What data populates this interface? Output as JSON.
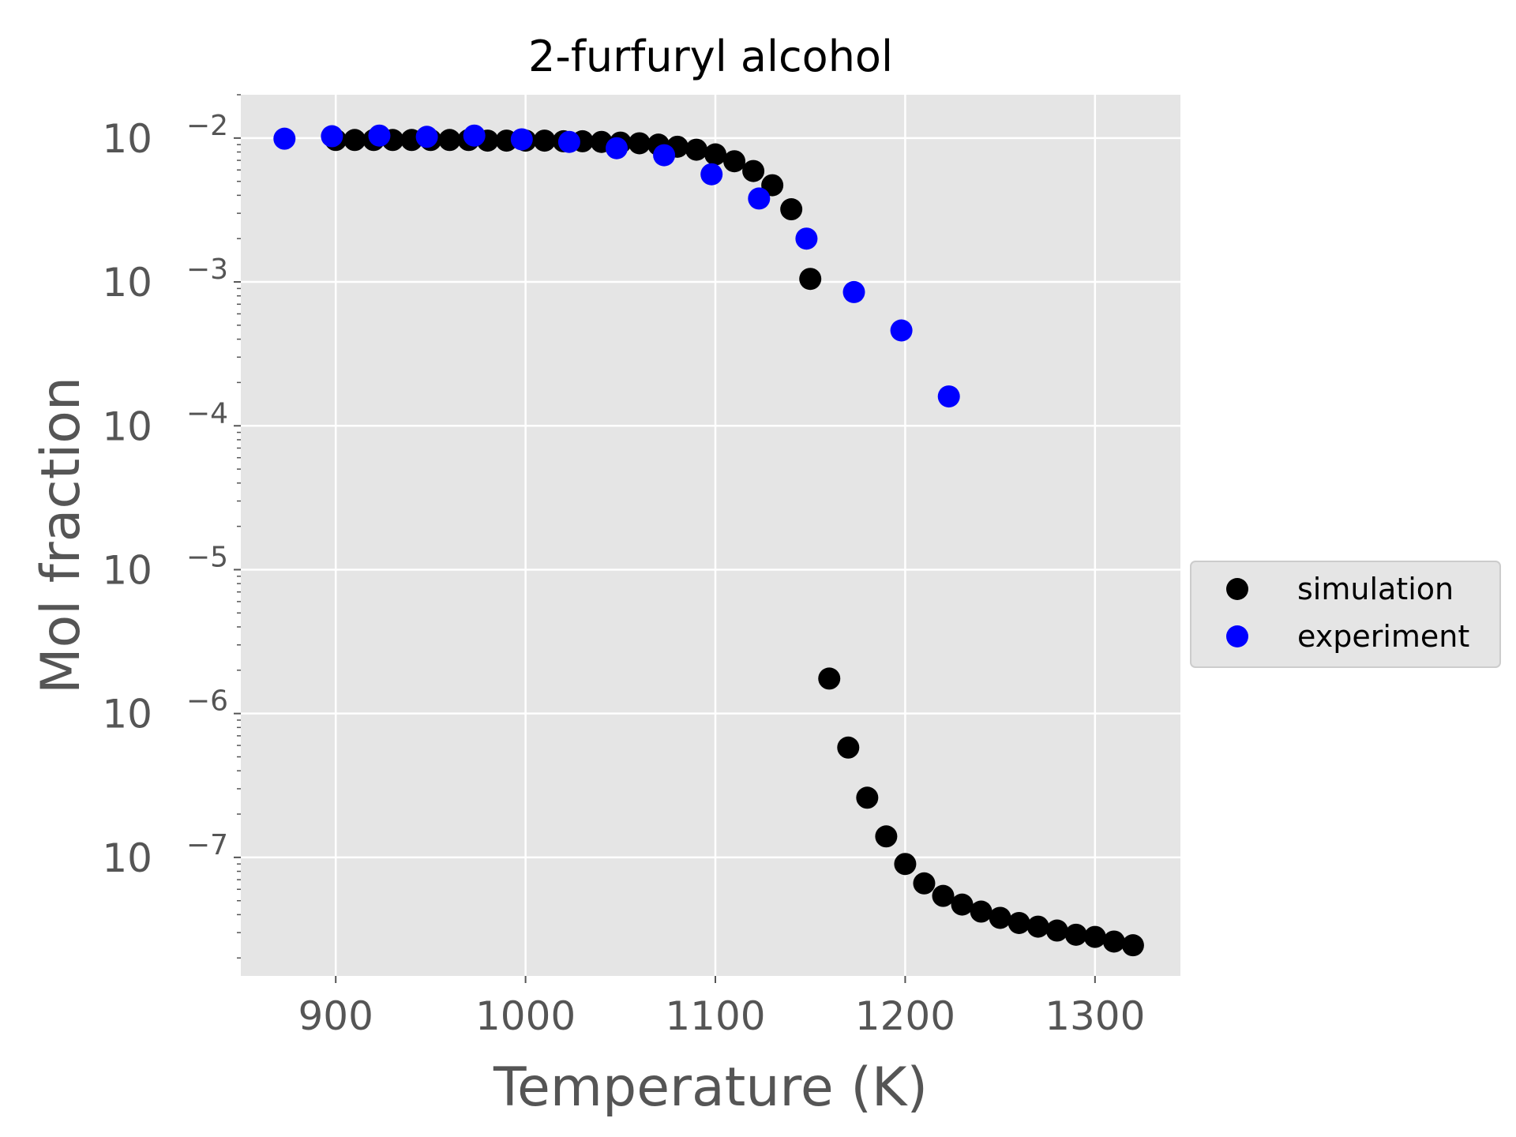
{
  "chart_data": {
    "type": "scatter",
    "title": "2-furfuryl alcohol",
    "xlabel": "Temperature (K)",
    "ylabel": "Mol fraction",
    "xlim": [
      850,
      1345
    ],
    "ylim": [
      1.5e-08,
      0.02
    ],
    "yscale": "log",
    "xticks": [
      900,
      1000,
      1100,
      1200,
      1300
    ],
    "yticks": [
      {
        "base": "10",
        "exp": "−2",
        "value": 0.01
      },
      {
        "base": "10",
        "exp": "−3",
        "value": 0.001
      },
      {
        "base": "10",
        "exp": "−4",
        "value": 0.0001
      },
      {
        "base": "10",
        "exp": "−5",
        "value": 1e-05
      },
      {
        "base": "10",
        "exp": "−6",
        "value": 1e-06
      },
      {
        "base": "10",
        "exp": "−7",
        "value": 1e-07
      }
    ],
    "grid": true,
    "legend_position": "center right, outside plot",
    "background_color": "#e5e5e5",
    "series": [
      {
        "name": "simulation",
        "color": "#000000",
        "points": [
          [
            900,
            0.0097
          ],
          [
            910,
            0.0097
          ],
          [
            920,
            0.0097
          ],
          [
            930,
            0.0097
          ],
          [
            940,
            0.0097
          ],
          [
            950,
            0.0097
          ],
          [
            960,
            0.0097
          ],
          [
            970,
            0.0097
          ],
          [
            980,
            0.0096
          ],
          [
            990,
            0.0096
          ],
          [
            1000,
            0.0096
          ],
          [
            1010,
            0.0096
          ],
          [
            1020,
            0.0095
          ],
          [
            1030,
            0.0095
          ],
          [
            1040,
            0.0094
          ],
          [
            1050,
            0.0093
          ],
          [
            1060,
            0.0092
          ],
          [
            1070,
            0.009
          ],
          [
            1080,
            0.0087
          ],
          [
            1090,
            0.0083
          ],
          [
            1100,
            0.0077
          ],
          [
            1110,
            0.0069
          ],
          [
            1120,
            0.0059
          ],
          [
            1130,
            0.0047
          ],
          [
            1140,
            0.0032
          ],
          [
            1150,
            0.00105
          ],
          [
            1160,
            1.75e-06
          ],
          [
            1170,
            5.8e-07
          ],
          [
            1180,
            2.6e-07
          ],
          [
            1190,
            1.4e-07
          ],
          [
            1200,
            9e-08
          ],
          [
            1210,
            6.6e-08
          ],
          [
            1220,
            5.4e-08
          ],
          [
            1230,
            4.7e-08
          ],
          [
            1240,
            4.2e-08
          ],
          [
            1250,
            3.8e-08
          ],
          [
            1260,
            3.5e-08
          ],
          [
            1270,
            3.3e-08
          ],
          [
            1280,
            3.1e-08
          ],
          [
            1290,
            2.9e-08
          ],
          [
            1300,
            2.8e-08
          ],
          [
            1310,
            2.6e-08
          ],
          [
            1320,
            2.45e-08
          ]
        ]
      },
      {
        "name": "experiment",
        "color": "#0000ff",
        "points": [
          [
            873,
            0.0099
          ],
          [
            898,
            0.0103
          ],
          [
            923,
            0.0104
          ],
          [
            948,
            0.0102
          ],
          [
            973,
            0.0104
          ],
          [
            998,
            0.0098
          ],
          [
            1023,
            0.0094
          ],
          [
            1048,
            0.0085
          ],
          [
            1073,
            0.0076
          ],
          [
            1098,
            0.0056
          ],
          [
            1123,
            0.0038
          ],
          [
            1148,
            0.002
          ],
          [
            1173,
            0.00085
          ],
          [
            1198,
            0.00046
          ],
          [
            1223,
            0.00016
          ]
        ]
      }
    ]
  }
}
